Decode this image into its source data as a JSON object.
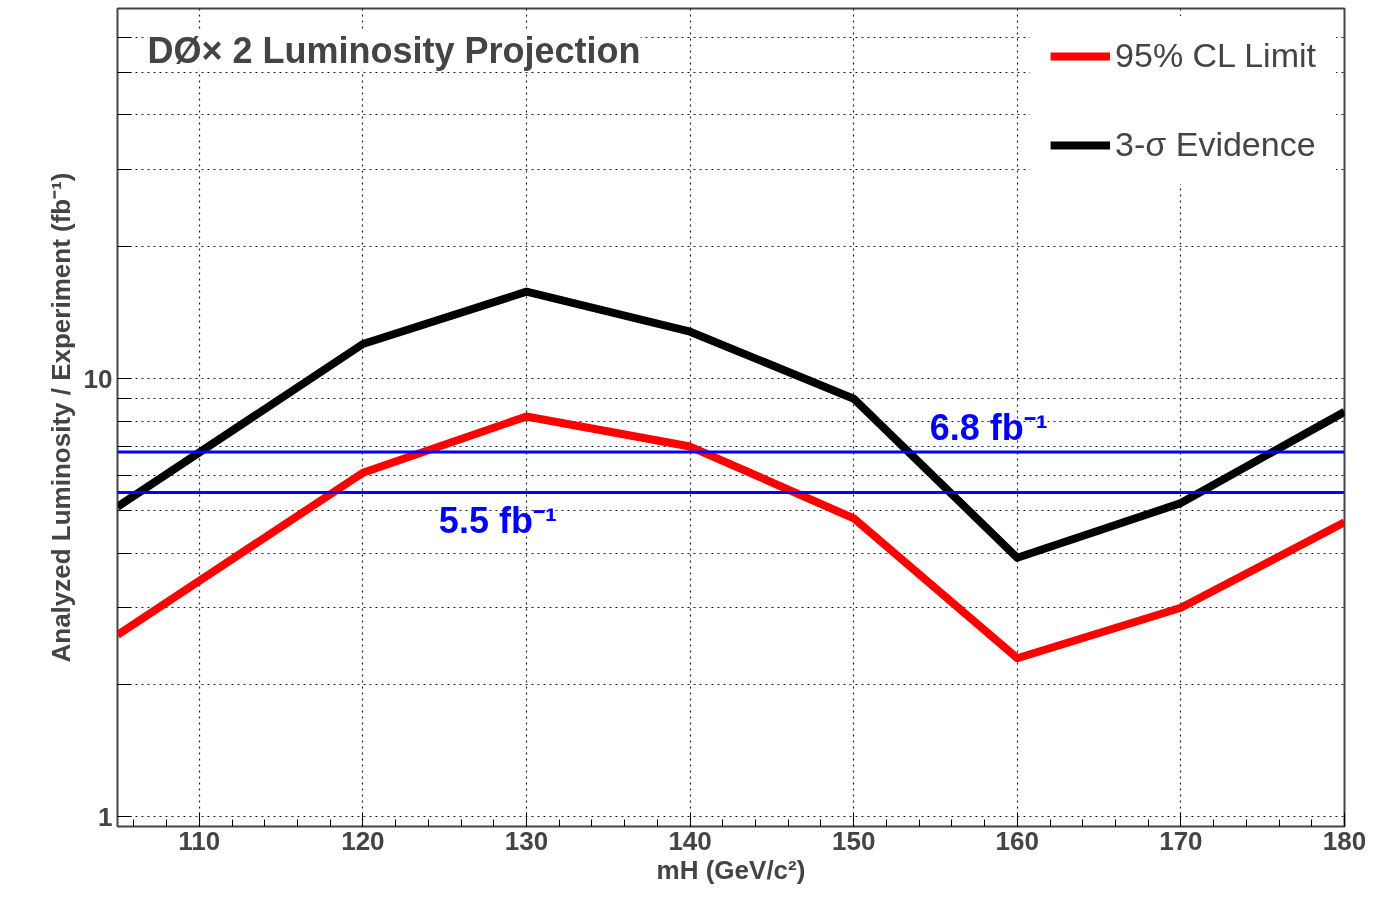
{
  "chart_data": {
    "type": "line",
    "title": "DØ× 2 Luminosity Projection",
    "xlabel": "mH (GeV/c²)",
    "ylabel": "Analyzed Luminosity / Experiment (fb⁻¹)",
    "x": [
      105,
      120,
      130,
      140,
      150,
      160,
      170,
      180
    ],
    "series": [
      {
        "name": "95% CL Limit",
        "color": "#ff0000",
        "values": [
          2.6,
          6.1,
          8.2,
          7.0,
          4.8,
          2.3,
          3.0,
          4.7
        ]
      },
      {
        "name": "3-σ Evidence",
        "color": "#000000",
        "values": [
          5.1,
          12.0,
          15.8,
          12.8,
          9.0,
          3.9,
          5.2,
          8.4
        ]
      }
    ],
    "ref_lines": [
      {
        "axis": "y",
        "value": 6.8,
        "color": "#0000ff",
        "label": "6.8 fb⁻¹"
      },
      {
        "axis": "y",
        "value": 5.5,
        "color": "#0000ff",
        "label": "5.5 fb⁻¹"
      }
    ],
    "log": "y",
    "xlim": [
      105,
      180
    ],
    "ylim": [
      0.95,
      70
    ],
    "xticks": [
      110,
      120,
      130,
      140,
      150,
      160,
      170,
      180
    ],
    "yticks": [
      1,
      {
        "value": 2,
        "label": null
      },
      {
        "value": 3,
        "label": null
      },
      {
        "value": 4,
        "label": null
      },
      {
        "value": 5,
        "label": null
      },
      {
        "value": 6,
        "label": null
      },
      {
        "value": 7,
        "label": null
      },
      {
        "value": 8,
        "label": null
      },
      {
        "value": 9,
        "label": null
      },
      10,
      {
        "value": 20,
        "label": null
      },
      {
        "value": 30,
        "label": null
      },
      {
        "value": 40,
        "label": null
      },
      {
        "value": 50,
        "label": null
      },
      {
        "value": 60,
        "label": null
      }
    ],
    "grid": true,
    "legend": "top right",
    "line_style": "solid",
    "marker": "none"
  }
}
